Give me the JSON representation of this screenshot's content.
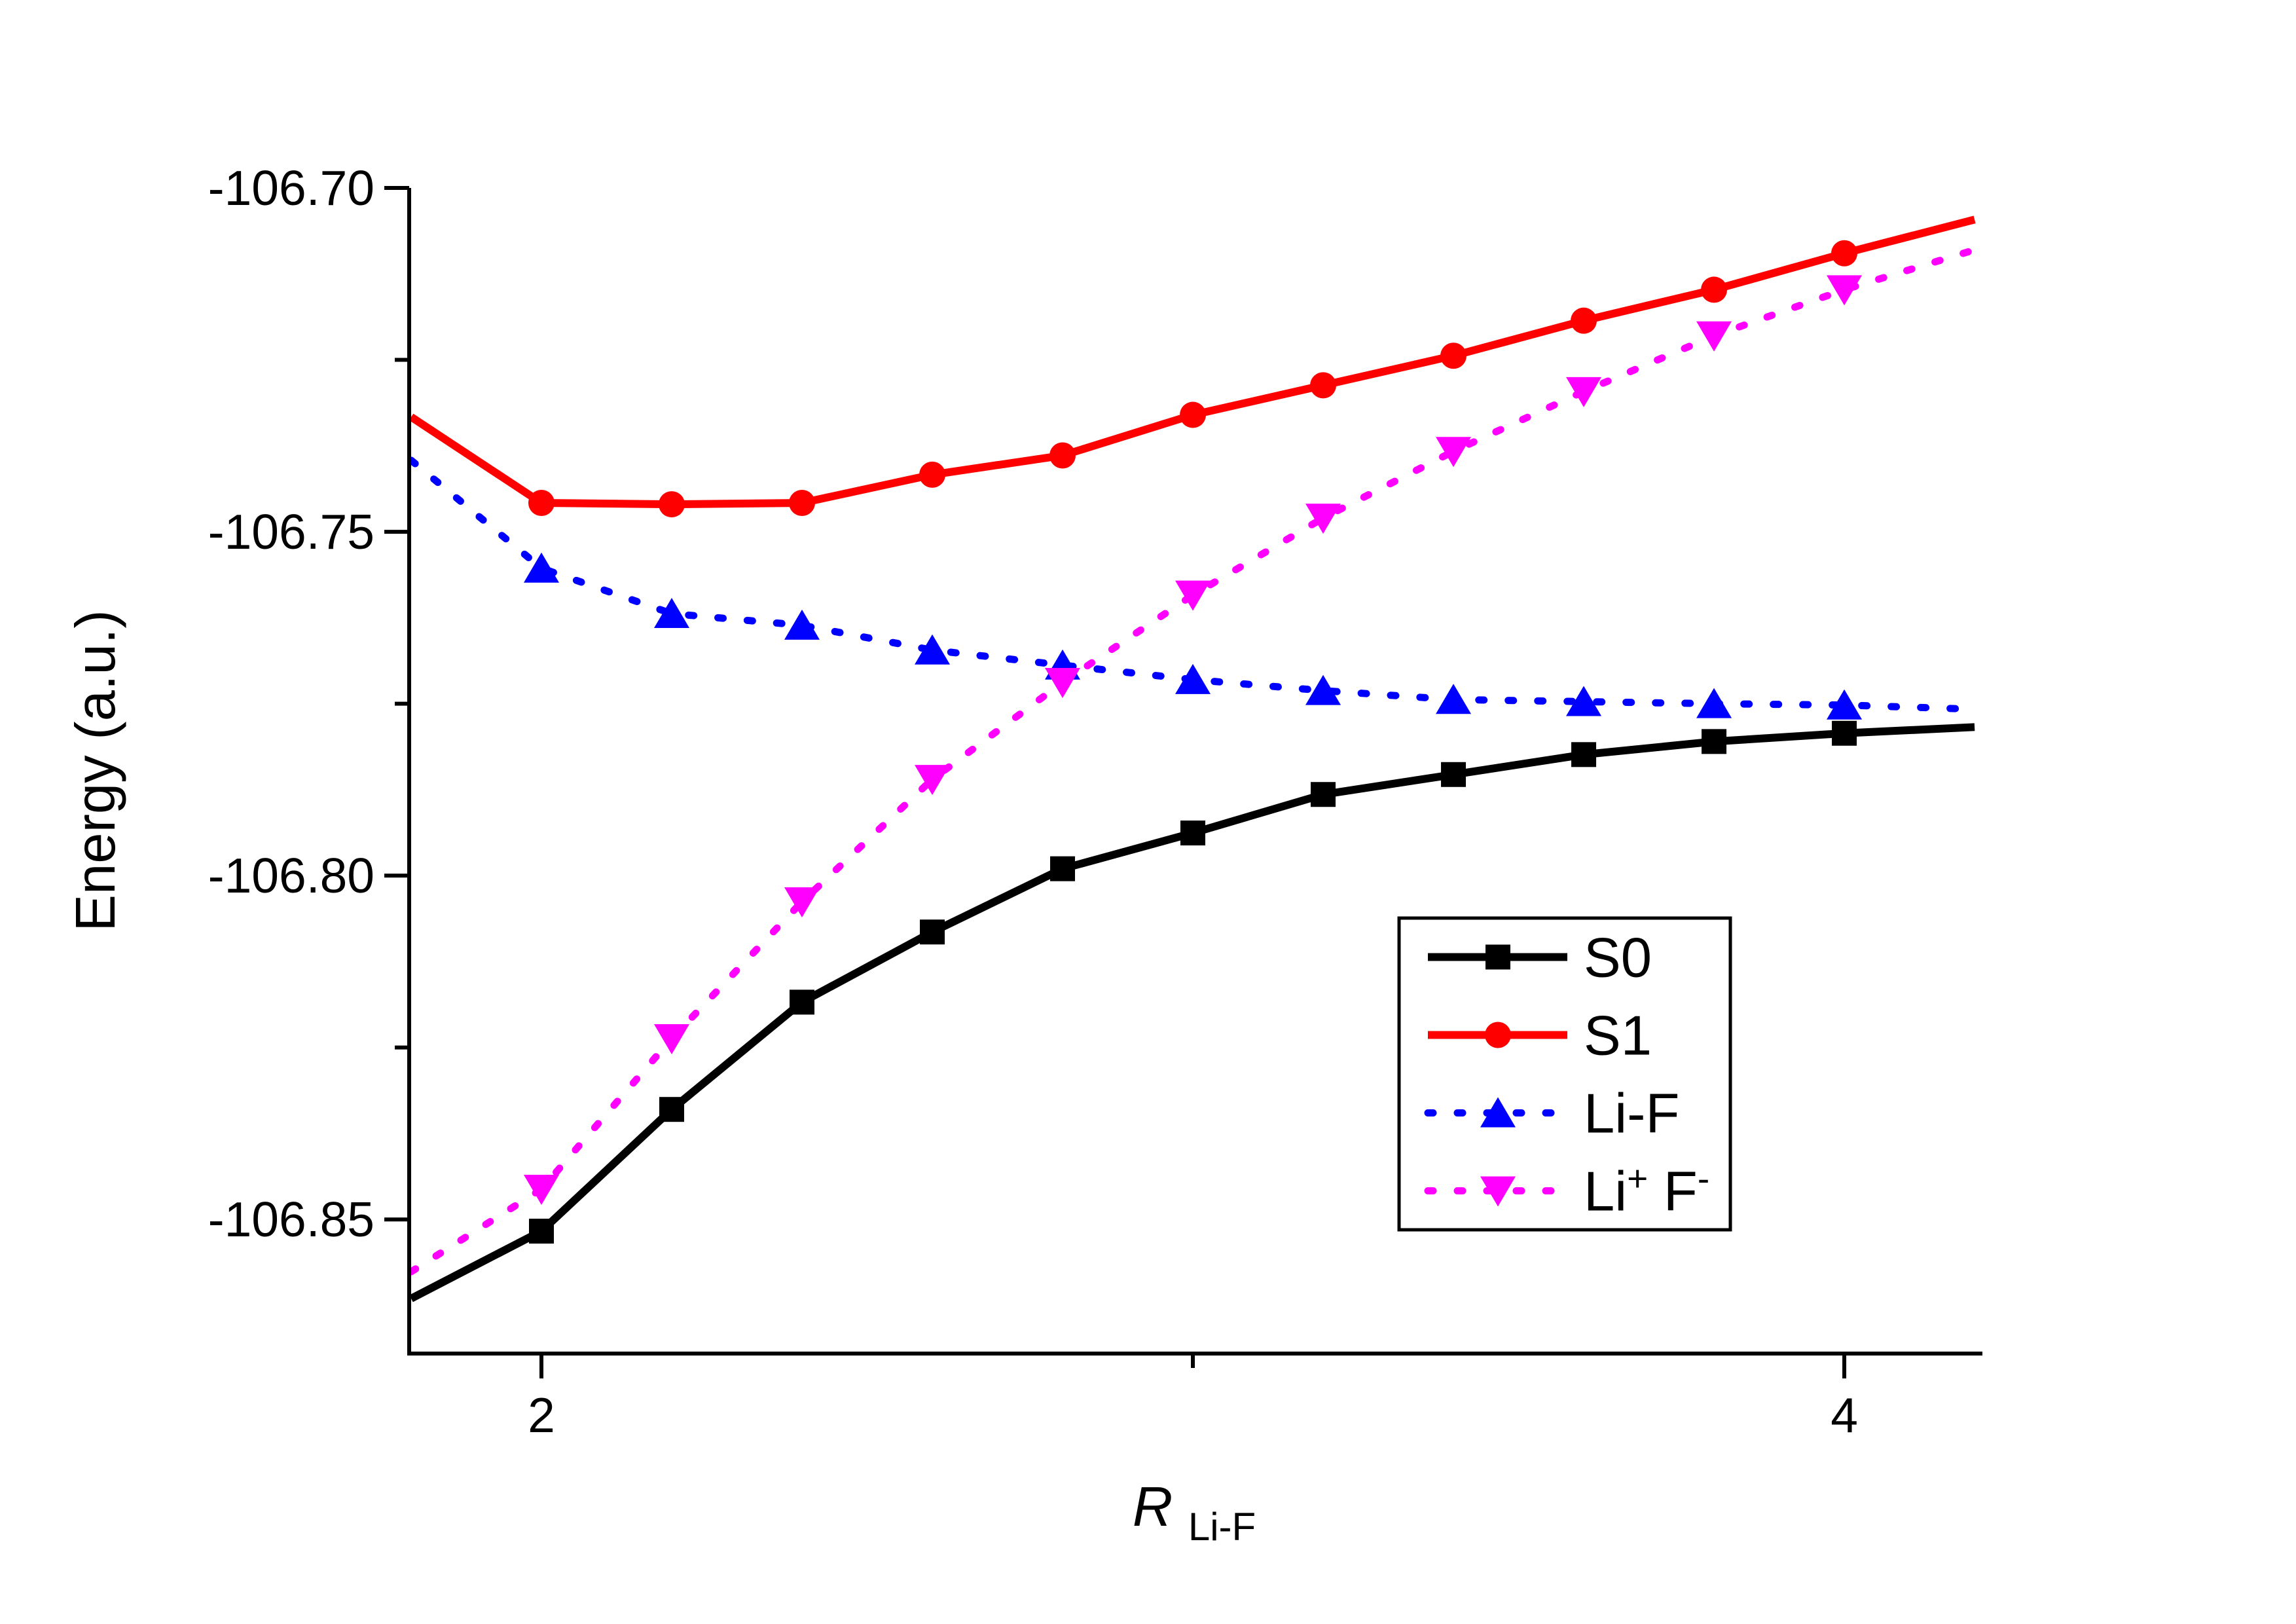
{
  "chart_data": {
    "type": "line",
    "title": "",
    "ylabel": "Energy (a.u.)",
    "xlabel": {
      "parts": [
        {
          "t": "R",
          "italic": true
        },
        {
          "t": "Li-F",
          "sub": true
        }
      ]
    },
    "xlim": [
      1.797,
      4.212
    ],
    "ylim": [
      -106.8695,
      -106.7
    ],
    "grid": false,
    "x_major_ticks": [
      {
        "value": 2,
        "label": "2"
      },
      {
        "value": 4,
        "label": "4"
      }
    ],
    "x_minor_ticks": [
      3
    ],
    "y_major_ticks": [
      {
        "value": -106.7,
        "label": "-106.70"
      },
      {
        "value": -106.75,
        "label": "-106.75"
      },
      {
        "value": -106.8,
        "label": "-106.80"
      },
      {
        "value": -106.85,
        "label": "-106.85"
      }
    ],
    "y_minor_ticks": [
      -106.725,
      -106.775,
      -106.825
    ],
    "x": [
      1.8,
      2.0,
      2.2,
      2.4,
      2.6,
      2.8,
      3.0,
      3.2,
      3.4,
      3.6,
      3.8,
      4.0,
      4.2
    ],
    "series": [
      {
        "id": "s0",
        "name": "S0",
        "color": "#000000",
        "line_style": "solid",
        "marker": "square",
        "values": [
          -106.8615,
          -106.8517,
          -106.834,
          -106.8184,
          -106.8082,
          -106.799,
          -106.7938,
          -106.7882,
          -106.7853,
          -106.7824,
          -106.7805,
          -106.7793,
          -106.7784
        ]
      },
      {
        "id": "s1",
        "name": "S1",
        "color": "#FF0000",
        "line_style": "solid",
        "marker": "circle",
        "values": [
          -106.7333,
          -106.7458,
          -106.746,
          -106.7458,
          -106.7417,
          -106.7389,
          -106.733,
          -106.7287,
          -106.7244,
          -106.7193,
          -106.7148,
          -106.7095,
          -106.7046
        ]
      },
      {
        "id": "li-f",
        "name": "Li-F",
        "color": "#0000FF",
        "line_style": "dotted",
        "marker": "triangle-up",
        "values": [
          -106.7396,
          -106.7553,
          -106.7619,
          -106.7636,
          -106.7672,
          -106.7694,
          -106.7715,
          -106.7731,
          -106.7744,
          -106.7747,
          -106.775,
          -106.7752,
          -106.7758
        ]
      },
      {
        "id": "li-plus-f-minus",
        "name": "Li+ F-",
        "color": "#FF00FF",
        "line_style": "dotted",
        "marker": "triangle-down",
        "values": [
          -106.8576,
          -106.8456,
          -106.8237,
          -106.8038,
          -106.786,
          -106.7719,
          -106.7592,
          -106.748,
          -106.7383,
          -106.7296,
          -106.7215,
          -106.7148,
          -106.709
        ]
      }
    ],
    "legend": {
      "position": "right-center-inside",
      "items": [
        {
          "id": "s0",
          "label_parts": [
            {
              "t": "S0"
            }
          ]
        },
        {
          "id": "s1",
          "label_parts": [
            {
              "t": "S1"
            }
          ]
        },
        {
          "id": "li-f",
          "label_parts": [
            {
              "t": "Li-F"
            }
          ]
        },
        {
          "id": "li-plus-f-minus",
          "label_parts": [
            {
              "t": "Li"
            },
            {
              "t": "+",
              "sup": true
            },
            {
              "t": " F"
            },
            {
              "t": "-",
              "sup": true
            }
          ]
        }
      ]
    }
  }
}
